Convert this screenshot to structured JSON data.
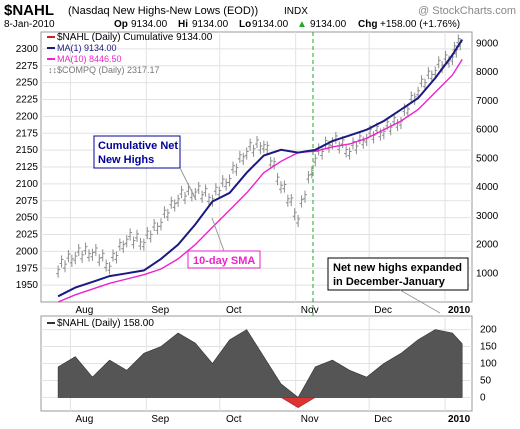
{
  "header": {
    "symbol": "$NAHL",
    "full_name": "(Nasdaq New Highs-New Lows (EOD))",
    "exchange": "INDX",
    "watermark": "@ StockCharts.com",
    "date": "8-Jan-2010",
    "open_label": "Op",
    "open": "9134.00",
    "high_label": "Hi",
    "high": "9134.00",
    "low_label": "Lo",
    "low": "9134.00",
    "close": "9134.00",
    "change_label": "Chg",
    "change": "+158.00 (+1.76%)",
    "change_arrow": "▲"
  },
  "legend_main": {
    "nahl": "$NAHL (Daily) Cumulative 9134.00",
    "ma1": "MA(1) 9134.00",
    "ma10": "MA(10) 8446.50",
    "compq": "$COMPQ (Daily) 2317.17"
  },
  "legend_lower": {
    "nahl": "$NAHL (Daily) 158.00"
  },
  "annotations": {
    "cumulative": [
      "Cumulative Net",
      "New Highs"
    ],
    "sma": "10-day SMA",
    "expanded": [
      "Net new highs expanded",
      "in December-January"
    ]
  },
  "colors": {
    "background": "#ffffff",
    "panel_border": "#999999",
    "grid": "#e2e2e2",
    "price_bars": "#8c8c8c",
    "ma1": "#1a1a80",
    "ma10": "#ee22cc",
    "area_fill": "#555555",
    "negative_fill": "#dd3333",
    "annotation_blue": "#000099",
    "annotation_magenta": "#ee22cc",
    "marker_line": "#22aa22"
  },
  "chart_data": [
    {
      "type": "line",
      "title": "$NAHL (Daily) Cumulative",
      "x_ticks": [
        "Aug",
        "Sep",
        "Oct",
        "Nov",
        "Dec",
        "2010"
      ],
      "y_left_ticks": [
        1950,
        1975,
        2000,
        2025,
        2050,
        2075,
        2100,
        2125,
        2150,
        2175,
        2200,
        2225,
        2250,
        2275,
        2300
      ],
      "y_left_label": "$COMPQ",
      "y_right_ticks": [
        1000,
        2000,
        3000,
        4000,
        5000,
        6000,
        7000,
        8000,
        9000
      ],
      "y_right_label": "$NAHL cumulative",
      "y_right_range": [
        0,
        9400
      ],
      "grid": true,
      "series": [
        {
          "name": "MA(1)",
          "axis": "right",
          "x": [
            "2009-07-27",
            "2009-08-03",
            "2009-08-10",
            "2009-08-17",
            "2009-08-24",
            "2009-08-31",
            "2009-09-07",
            "2009-09-14",
            "2009-09-21",
            "2009-09-28",
            "2009-10-05",
            "2009-10-12",
            "2009-10-19",
            "2009-10-26",
            "2009-11-02",
            "2009-11-09",
            "2009-11-16",
            "2009-11-23",
            "2009-11-30",
            "2009-12-07",
            "2009-12-14",
            "2009-12-21",
            "2009-12-28",
            "2010-01-04",
            "2010-01-08"
          ],
          "values": [
            200,
            500,
            700,
            900,
            1000,
            1100,
            1500,
            2000,
            2700,
            3500,
            3800,
            4500,
            5100,
            5300,
            5200,
            5300,
            5600,
            5800,
            6000,
            6300,
            6700,
            7100,
            7800,
            8600,
            9134
          ]
        },
        {
          "name": "MA(10)",
          "axis": "right",
          "x": [
            "2009-07-27",
            "2009-08-03",
            "2009-08-10",
            "2009-08-17",
            "2009-08-24",
            "2009-08-31",
            "2009-09-07",
            "2009-09-14",
            "2009-09-21",
            "2009-09-28",
            "2009-10-05",
            "2009-10-12",
            "2009-10-19",
            "2009-10-26",
            "2009-11-02",
            "2009-11-09",
            "2009-11-16",
            "2009-11-23",
            "2009-11-30",
            "2009-12-07",
            "2009-12-14",
            "2009-12-21",
            "2009-12-28",
            "2010-01-04",
            "2010-01-08"
          ],
          "values": [
            0,
            250,
            450,
            650,
            800,
            950,
            1150,
            1500,
            2000,
            2600,
            3200,
            3800,
            4500,
            4900,
            5200,
            5250,
            5400,
            5500,
            5700,
            6000,
            6300,
            6700,
            7300,
            7900,
            8446.5
          ]
        },
        {
          "name": "$COMPQ",
          "axis": "left",
          "x": [
            "2009-07-27",
            "2009-08-03",
            "2009-08-10",
            "2009-08-17",
            "2009-08-24",
            "2009-08-31",
            "2009-09-07",
            "2009-09-14",
            "2009-09-21",
            "2009-09-28",
            "2009-10-05",
            "2009-10-12",
            "2009-10-19",
            "2009-10-26",
            "2009-11-02",
            "2009-11-09",
            "2009-11-16",
            "2009-11-23",
            "2009-11-30",
            "2009-12-07",
            "2009-12-14",
            "2009-12-21",
            "2009-12-28",
            "2010-01-04",
            "2010-01-08"
          ],
          "values": [
            1975,
            1995,
            2000,
            1980,
            2020,
            2015,
            2045,
            2080,
            2090,
            2080,
            2110,
            2150,
            2160,
            2100,
            2050,
            2140,
            2165,
            2150,
            2170,
            2180,
            2195,
            2240,
            2270,
            2290,
            2317.17
          ]
        }
      ]
    },
    {
      "type": "area",
      "title": "$NAHL (Daily)",
      "x_ticks": [
        "Aug",
        "Sep",
        "Oct",
        "Nov",
        "Dec",
        "2010"
      ],
      "y_right_ticks": [
        0,
        50,
        100,
        150,
        200
      ],
      "y_range": [
        -40,
        240
      ],
      "grid": true,
      "series": [
        {
          "name": "$NAHL",
          "x": [
            "2009-07-27",
            "2009-08-03",
            "2009-08-10",
            "2009-08-17",
            "2009-08-24",
            "2009-08-31",
            "2009-09-07",
            "2009-09-14",
            "2009-09-21",
            "2009-09-28",
            "2009-10-05",
            "2009-10-12",
            "2009-10-19",
            "2009-10-26",
            "2009-11-02",
            "2009-11-09",
            "2009-11-16",
            "2009-11-23",
            "2009-11-30",
            "2009-12-07",
            "2009-12-14",
            "2009-12-21",
            "2009-12-28",
            "2010-01-04",
            "2010-01-08"
          ],
          "values": [
            90,
            120,
            60,
            110,
            80,
            130,
            150,
            190,
            160,
            100,
            170,
            200,
            120,
            40,
            -30,
            90,
            110,
            80,
            60,
            100,
            130,
            170,
            200,
            190,
            158
          ]
        }
      ]
    }
  ]
}
